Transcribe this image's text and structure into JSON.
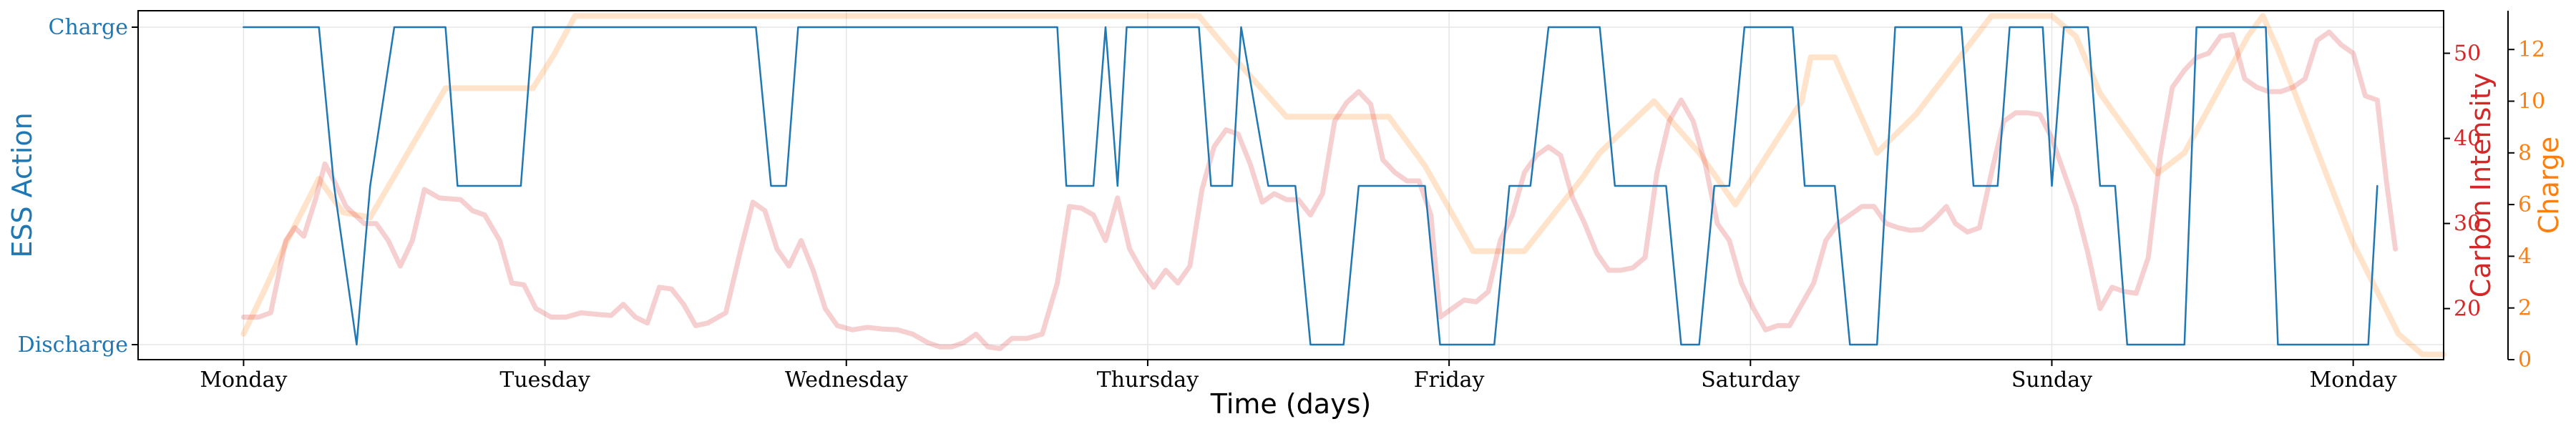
{
  "chart_data": {
    "type": "line",
    "xlabel": "Time (days)",
    "x_tick_labels": [
      "Monday",
      "Tuesday",
      "Wednesday",
      "Thursday",
      "Friday",
      "Saturday",
      "Sunday",
      "Monday"
    ],
    "x_unit": "days",
    "xlim": [
      -0.35,
      7.3
    ],
    "left_axis": {
      "label": "ESS Action",
      "ticks": [
        "Charge",
        "Discharge"
      ],
      "color": "#1f77b4"
    },
    "right_axis_1": {
      "label": "Carbon Intensity",
      "ticks": [
        20,
        30,
        40,
        50
      ],
      "ylim": [
        14,
        55
      ],
      "color": "#d62728"
    },
    "right_axis_2": {
      "label": "Charge",
      "ticks": [
        0,
        2,
        4,
        6,
        8,
        10,
        12
      ],
      "ylim": [
        0,
        13.5
      ],
      "color": "#ff7f0e"
    },
    "grid": true,
    "series": [
      {
        "axis": "left",
        "color": "#1f77b4",
        "style": "thin",
        "encoding": "1 = Charge, 0 = Discharge, 0.5 = idle",
        "points": [
          [
            0,
            1
          ],
          [
            0.25,
            1
          ],
          [
            0.3,
            0.5
          ],
          [
            0.375,
            0
          ],
          [
            0.42,
            0.5
          ],
          [
            0.5,
            1
          ],
          [
            0.67,
            1
          ],
          [
            0.71,
            0.5
          ],
          [
            0.92,
            0.5
          ],
          [
            0.96,
            1
          ],
          [
            1.7,
            1
          ],
          [
            1.75,
            0.5
          ],
          [
            1.8,
            0.5
          ],
          [
            1.84,
            1
          ],
          [
            2.7,
            1
          ],
          [
            2.73,
            0.5
          ],
          [
            2.82,
            0.5
          ],
          [
            2.86,
            1
          ],
          [
            2.9,
            0.5
          ],
          [
            2.93,
            1
          ],
          [
            3.17,
            1
          ],
          [
            3.21,
            0.5
          ],
          [
            3.28,
            0.5
          ],
          [
            3.31,
            1
          ],
          [
            3.4,
            0.5
          ],
          [
            3.49,
            0.5
          ],
          [
            3.54,
            0
          ],
          [
            3.65,
            0
          ],
          [
            3.7,
            0.5
          ],
          [
            3.92,
            0.5
          ],
          [
            3.97,
            0
          ],
          [
            4.15,
            0
          ],
          [
            4.2,
            0.5
          ],
          [
            4.27,
            0.5
          ],
          [
            4.33,
            1
          ],
          [
            4.5,
            1
          ],
          [
            4.55,
            0.5
          ],
          [
            4.72,
            0.5
          ],
          [
            4.77,
            0
          ],
          [
            4.83,
            0
          ],
          [
            4.88,
            0.5
          ],
          [
            4.93,
            0.5
          ],
          [
            4.98,
            1
          ],
          [
            5.14,
            1
          ],
          [
            5.18,
            0.5
          ],
          [
            5.28,
            0.5
          ],
          [
            5.33,
            0
          ],
          [
            5.42,
            0
          ],
          [
            5.48,
            1
          ],
          [
            5.65,
            1
          ],
          [
            5.7,
            1
          ],
          [
            5.74,
            0.5
          ],
          [
            5.82,
            0.5
          ],
          [
            5.86,
            1
          ],
          [
            5.97,
            1
          ],
          [
            6.0,
            0.5
          ],
          [
            6.04,
            1
          ],
          [
            6.12,
            1
          ],
          [
            6.16,
            0.5
          ],
          [
            6.21,
            0.5
          ],
          [
            6.25,
            0
          ],
          [
            6.44,
            0
          ],
          [
            6.48,
            1
          ],
          [
            6.71,
            1
          ],
          [
            6.75,
            0
          ],
          [
            7.0,
            0
          ],
          [
            7.05,
            0
          ],
          [
            7.08,
            0.5
          ]
        ]
      },
      {
        "axis": "right_1",
        "name": "Carbon Intensity",
        "color": "#d62728",
        "style": "thick-faint",
        "points": [
          [
            0,
            19
          ],
          [
            0.05,
            19
          ],
          [
            0.09,
            19.5
          ],
          [
            0.14,
            28
          ],
          [
            0.17,
            29.5
          ],
          [
            0.2,
            28.5
          ],
          [
            0.24,
            33
          ],
          [
            0.27,
            37
          ],
          [
            0.3,
            35
          ],
          [
            0.34,
            32
          ],
          [
            0.4,
            30
          ],
          [
            0.44,
            30
          ],
          [
            0.48,
            28
          ],
          [
            0.52,
            25
          ],
          [
            0.56,
            28
          ],
          [
            0.6,
            34
          ],
          [
            0.65,
            33
          ],
          [
            0.72,
            32.8
          ],
          [
            0.76,
            31.5
          ],
          [
            0.8,
            31
          ],
          [
            0.85,
            28
          ],
          [
            0.89,
            23
          ],
          [
            0.93,
            22.8
          ],
          [
            0.97,
            20
          ],
          [
            1.02,
            19
          ],
          [
            1.07,
            19
          ],
          [
            1.12,
            19.5
          ],
          [
            1.18,
            19.3
          ],
          [
            1.22,
            19.2
          ],
          [
            1.26,
            20.5
          ],
          [
            1.3,
            19
          ],
          [
            1.34,
            18.3
          ],
          [
            1.38,
            22.5
          ],
          [
            1.42,
            22.3
          ],
          [
            1.46,
            20.5
          ],
          [
            1.5,
            18
          ],
          [
            1.54,
            18.3
          ],
          [
            1.6,
            19.5
          ],
          [
            1.65,
            27
          ],
          [
            1.69,
            32.5
          ],
          [
            1.73,
            31.5
          ],
          [
            1.77,
            27
          ],
          [
            1.81,
            25
          ],
          [
            1.85,
            28
          ],
          [
            1.89,
            24.5
          ],
          [
            1.93,
            20
          ],
          [
            1.97,
            18
          ],
          [
            2.02,
            17.5
          ],
          [
            2.07,
            17.8
          ],
          [
            2.12,
            17.6
          ],
          [
            2.17,
            17.5
          ],
          [
            2.22,
            17
          ],
          [
            2.27,
            16
          ],
          [
            2.31,
            15.5
          ],
          [
            2.35,
            15.5
          ],
          [
            2.39,
            16
          ],
          [
            2.43,
            17
          ],
          [
            2.47,
            15.5
          ],
          [
            2.51,
            15.3
          ],
          [
            2.55,
            16.5
          ],
          [
            2.6,
            16.5
          ],
          [
            2.65,
            17
          ],
          [
            2.7,
            23
          ],
          [
            2.74,
            32
          ],
          [
            2.78,
            31.8
          ],
          [
            2.82,
            31
          ],
          [
            2.86,
            28
          ],
          [
            2.9,
            33
          ],
          [
            2.94,
            27
          ],
          [
            2.98,
            24.5
          ],
          [
            3.02,
            22.5
          ],
          [
            3.06,
            24.5
          ],
          [
            3.1,
            23
          ],
          [
            3.14,
            25
          ],
          [
            3.18,
            34
          ],
          [
            3.22,
            39
          ],
          [
            3.26,
            41
          ],
          [
            3.3,
            40.5
          ],
          [
            3.34,
            37
          ],
          [
            3.38,
            32.5
          ],
          [
            3.42,
            33.5
          ],
          [
            3.46,
            32.8
          ],
          [
            3.5,
            32.8
          ],
          [
            3.54,
            31
          ],
          [
            3.58,
            33.5
          ],
          [
            3.62,
            42
          ],
          [
            3.66,
            44.2
          ],
          [
            3.7,
            45.5
          ],
          [
            3.74,
            44
          ],
          [
            3.78,
            37.5
          ],
          [
            3.82,
            36
          ],
          [
            3.86,
            35
          ],
          [
            3.9,
            35
          ],
          [
            3.94,
            31
          ],
          [
            3.97,
            19
          ],
          [
            4.01,
            20
          ],
          [
            4.05,
            21
          ],
          [
            4.09,
            20.8
          ],
          [
            4.13,
            22
          ],
          [
            4.17,
            28
          ],
          [
            4.21,
            31
          ],
          [
            4.25,
            36
          ],
          [
            4.29,
            38
          ],
          [
            4.33,
            39
          ],
          [
            4.37,
            38
          ],
          [
            4.41,
            33
          ],
          [
            4.45,
            30
          ],
          [
            4.49,
            26.5
          ],
          [
            4.53,
            24.5
          ],
          [
            4.57,
            24.5
          ],
          [
            4.61,
            24.8
          ],
          [
            4.65,
            26
          ],
          [
            4.69,
            36
          ],
          [
            4.73,
            42
          ],
          [
            4.77,
            44.5
          ],
          [
            4.81,
            42
          ],
          [
            4.85,
            37
          ],
          [
            4.89,
            30
          ],
          [
            4.93,
            28
          ],
          [
            4.97,
            23
          ],
          [
            5.01,
            20
          ],
          [
            5.05,
            17.5
          ],
          [
            5.09,
            18
          ],
          [
            5.13,
            18
          ],
          [
            5.17,
            20.5
          ],
          [
            5.21,
            23
          ],
          [
            5.25,
            28
          ],
          [
            5.29,
            30
          ],
          [
            5.33,
            31
          ],
          [
            5.37,
            32
          ],
          [
            5.41,
            32
          ],
          [
            5.45,
            30
          ],
          [
            5.49,
            29.5
          ],
          [
            5.53,
            29.2
          ],
          [
            5.57,
            29.3
          ],
          [
            5.61,
            30.5
          ],
          [
            5.65,
            32
          ],
          [
            5.68,
            30
          ],
          [
            5.72,
            29
          ],
          [
            5.76,
            29.5
          ],
          [
            5.8,
            36
          ],
          [
            5.84,
            42
          ],
          [
            5.88,
            43
          ],
          [
            5.92,
            43
          ],
          [
            5.96,
            42.8
          ],
          [
            6.0,
            40
          ],
          [
            6.04,
            36
          ],
          [
            6.08,
            32
          ],
          [
            6.12,
            26.5
          ],
          [
            6.16,
            20
          ],
          [
            6.2,
            22.5
          ],
          [
            6.24,
            22
          ],
          [
            6.28,
            21.8
          ],
          [
            6.32,
            26
          ],
          [
            6.36,
            38
          ],
          [
            6.4,
            46
          ],
          [
            6.44,
            48
          ],
          [
            6.48,
            49.5
          ],
          [
            6.52,
            50
          ],
          [
            6.56,
            52
          ],
          [
            6.6,
            52.2
          ],
          [
            6.64,
            47
          ],
          [
            6.68,
            46
          ],
          [
            6.72,
            45.5
          ],
          [
            6.76,
            45.5
          ],
          [
            6.8,
            46
          ],
          [
            6.84,
            47
          ],
          [
            6.88,
            51.5
          ],
          [
            6.92,
            52.5
          ],
          [
            6.96,
            51
          ],
          [
            7.0,
            50
          ],
          [
            7.04,
            45
          ],
          [
            7.08,
            44.5
          ],
          [
            7.11,
            35
          ],
          [
            7.14,
            27
          ]
        ]
      },
      {
        "axis": "right_2",
        "name": "Charge",
        "color": "#ff7f0e",
        "style": "thick-faint",
        "points": [
          [
            0,
            1
          ],
          [
            0.07,
            2.7
          ],
          [
            0.14,
            4.5
          ],
          [
            0.25,
            7
          ],
          [
            0.33,
            5.7
          ],
          [
            0.42,
            5.5
          ],
          [
            0.67,
            10.5
          ],
          [
            0.96,
            10.5
          ],
          [
            1.03,
            11.8
          ],
          [
            1.1,
            13.3
          ],
          [
            2.7,
            13.3
          ],
          [
            2.82,
            13.3
          ],
          [
            3.17,
            13.3
          ],
          [
            3.3,
            11.5
          ],
          [
            3.46,
            9.4
          ],
          [
            3.58,
            9.4
          ],
          [
            3.8,
            9.4
          ],
          [
            3.92,
            7.5
          ],
          [
            4.08,
            4.2
          ],
          [
            4.25,
            4.2
          ],
          [
            4.44,
            7
          ],
          [
            4.5,
            8
          ],
          [
            4.68,
            10
          ],
          [
            4.83,
            8
          ],
          [
            4.95,
            6
          ],
          [
            5.17,
            10
          ],
          [
            5.2,
            11.7
          ],
          [
            5.28,
            11.7
          ],
          [
            5.42,
            8
          ],
          [
            5.55,
            9.5
          ],
          [
            5.8,
            13.3
          ],
          [
            6.0,
            13.3
          ],
          [
            6.08,
            12.5
          ],
          [
            6.16,
            10.3
          ],
          [
            6.35,
            7.2
          ],
          [
            6.44,
            8
          ],
          [
            6.65,
            12.5
          ],
          [
            6.7,
            13.3
          ],
          [
            6.75,
            12
          ],
          [
            6.85,
            9
          ],
          [
            7.0,
            4.5
          ],
          [
            7.15,
            1
          ],
          [
            7.23,
            0.2
          ],
          [
            7.3,
            0.2
          ]
        ]
      }
    ]
  }
}
